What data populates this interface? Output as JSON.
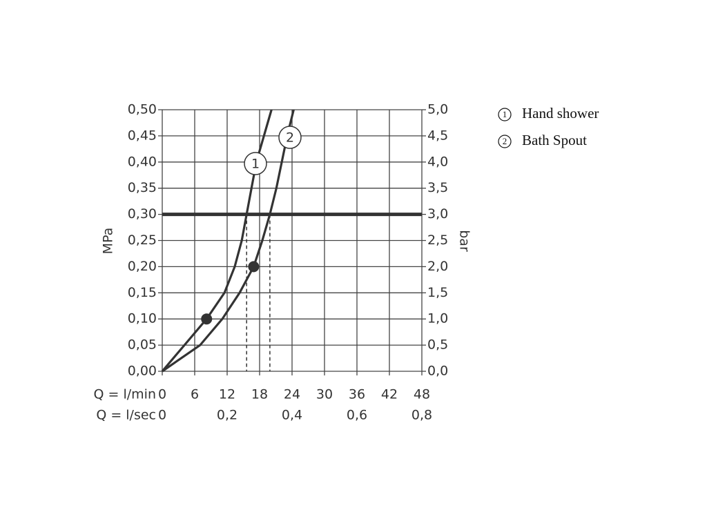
{
  "chart_data": {
    "type": "line",
    "ylabel": "MPa",
    "y2label": "bar",
    "xrow_label": "Q = l/min",
    "x2row_label": "Q = l/sec",
    "xlim": [
      0,
      48
    ],
    "xticks": [
      0,
      6,
      12,
      18,
      24,
      30,
      36,
      42,
      48
    ],
    "x2lim": [
      0,
      0.8
    ],
    "x2ticks": [
      0,
      {
        "value": 0.2,
        "label": "0,2"
      },
      {
        "value": 0.4,
        "label": "0,4"
      },
      {
        "value": 0.6,
        "label": "0,6"
      },
      {
        "value": 0.8,
        "label": "0,8"
      }
    ],
    "ylim": [
      0,
      0.5
    ],
    "yticks": [
      {
        "value": 0,
        "label": "0,00"
      },
      {
        "value": 0.05,
        "label": "0,05"
      },
      {
        "value": 0.1,
        "label": "0,10"
      },
      {
        "value": 0.15,
        "label": "0,15"
      },
      {
        "value": 0.2,
        "label": "0,20"
      },
      {
        "value": 0.25,
        "label": "0,25"
      },
      {
        "value": 0.3,
        "label": "0,30"
      },
      {
        "value": 0.35,
        "label": "0,35"
      },
      {
        "value": 0.4,
        "label": "0,40"
      },
      {
        "value": 0.45,
        "label": "0,45"
      },
      {
        "value": 0.5,
        "label": "0,50"
      }
    ],
    "y2lim": [
      0,
      5
    ],
    "y2ticks": [
      {
        "value": 0,
        "label": "0,0"
      },
      {
        "value": 0.5,
        "label": "0,5"
      },
      {
        "value": 1,
        "label": "1,0"
      },
      {
        "value": 1.5,
        "label": "1,5"
      },
      {
        "value": 2,
        "label": "2,0"
      },
      {
        "value": 2.5,
        "label": "2,5"
      },
      {
        "value": 3,
        "label": "3,0"
      },
      {
        "value": 3.5,
        "label": "3,5"
      },
      {
        "value": 4,
        "label": "4,0"
      },
      {
        "value": 4.5,
        "label": "4,5"
      },
      {
        "value": 5,
        "label": "5,0"
      }
    ],
    "grid": true,
    "color": "#333333",
    "operating_pressure": 0.3,
    "series": [
      {
        "name": "Hand shower",
        "marker": "1",
        "x": [
          0,
          4.1,
          8.2,
          11.5,
          13.4,
          14.7,
          15.6,
          16.5,
          17.4,
          18.8,
          20.2
        ],
        "values": [
          0,
          0.05,
          0.1,
          0.15,
          0.2,
          0.25,
          0.3,
          0.35,
          0.4,
          0.45,
          0.5
        ],
        "point": [
          8.2,
          0.1
        ],
        "operating_flow": 15.6
      },
      {
        "name": "Bath Spout",
        "marker": "2",
        "x": [
          0,
          7.0,
          11.1,
          14.3,
          16.9,
          18.5,
          19.9,
          21.1,
          22.1,
          23.1,
          24.3
        ],
        "values": [
          0,
          0.05,
          0.1,
          0.15,
          0.2,
          0.25,
          0.3,
          0.35,
          0.4,
          0.45,
          0.5
        ],
        "point": [
          16.9,
          0.2
        ],
        "operating_flow": 19.9
      }
    ]
  }
}
